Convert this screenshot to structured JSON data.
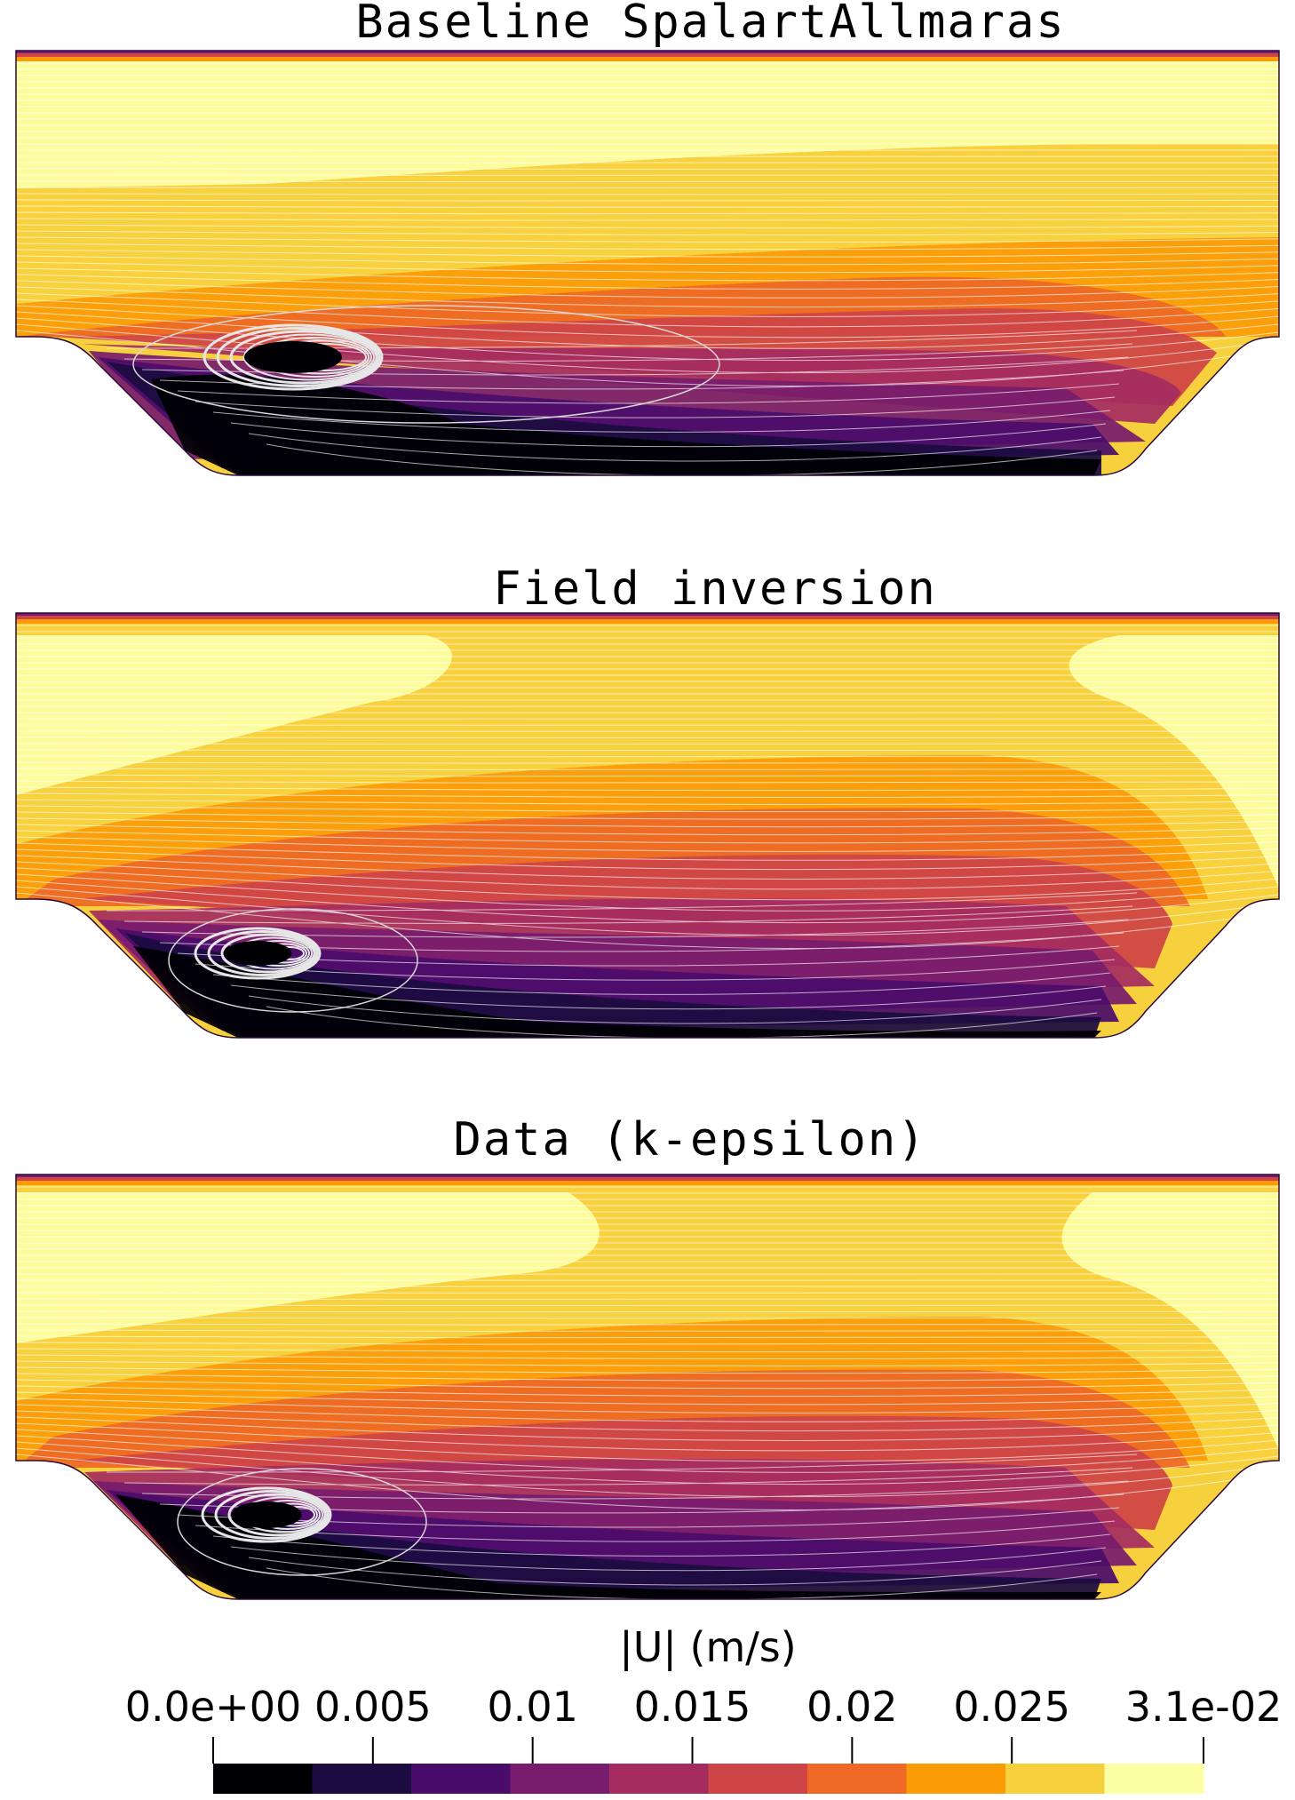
{
  "panels": [
    {
      "title": "Baseline SpalartAllmaras"
    },
    {
      "title": "Field inversion"
    },
    {
      "title": "Data (k-epsilon)"
    }
  ],
  "colorbar": {
    "title": "|U| (m/s)",
    "tick_labels": [
      "0.0e+00",
      "0.005",
      "0.01",
      "0.015",
      "0.02",
      "0.025",
      "3.1e-02"
    ],
    "colors": [
      "#000004",
      "#1b0c41",
      "#4a0c6b",
      "#781c6d",
      "#a52c60",
      "#cf4446",
      "#ed6925",
      "#fb9b06",
      "#f7d13d",
      "#fcffa4"
    ]
  },
  "chart_data": {
    "type": "heatmap",
    "variable": "|U| (m/s)",
    "range": [
      0.0,
      0.031
    ],
    "ticks": [
      0.0,
      0.005,
      0.01,
      0.015,
      0.02,
      0.025,
      0.031
    ],
    "levels": 10
  }
}
